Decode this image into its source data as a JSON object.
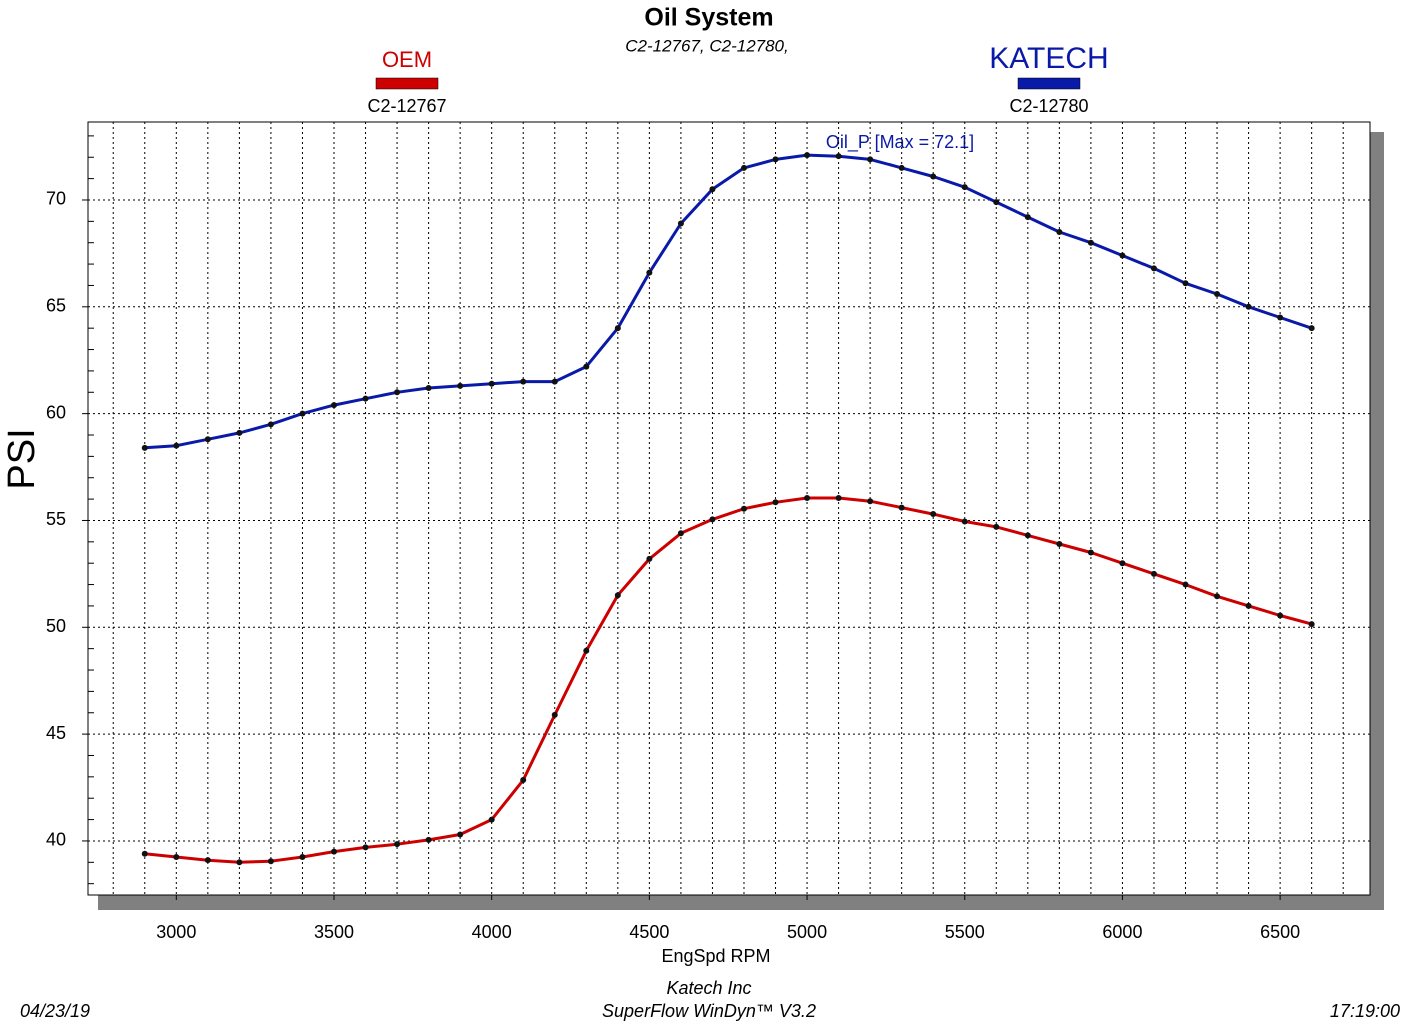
{
  "chart_data": {
    "type": "line",
    "title": "Oil System",
    "subtitle": "C2-12767, C2-12780,",
    "x_label": "EngSpd RPM",
    "y_label": "PSI",
    "annotation": "Oil_P  [Max = 72.1]",
    "footer": {
      "date": "04/23/19",
      "company": "Katech Inc",
      "software": "SuperFlow WinDyn™ V3.2",
      "time": "17:19:00"
    },
    "x": [
      2900,
      3000,
      3100,
      3200,
      3300,
      3400,
      3500,
      3600,
      3700,
      3800,
      3900,
      4000,
      4100,
      4200,
      4300,
      4400,
      4500,
      4600,
      4700,
      4800,
      4900,
      5000,
      5100,
      5200,
      5300,
      5400,
      5500,
      5600,
      5700,
      5800,
      5900,
      6000,
      6100,
      6200,
      6300,
      6400,
      6500,
      6600
    ],
    "series": [
      {
        "name": "OEM",
        "test": "C2-12767",
        "color": "#cc0000",
        "values": [
          39.4,
          39.25,
          39.1,
          39.0,
          39.05,
          39.25,
          39.5,
          39.7,
          39.85,
          40.05,
          40.3,
          41.0,
          42.85,
          45.9,
          48.9,
          51.5,
          53.2,
          54.4,
          55.05,
          55.55,
          55.85,
          56.05,
          56.05,
          55.9,
          55.6,
          55.3,
          54.95,
          54.7,
          54.3,
          53.9,
          53.5,
          53.0,
          52.5,
          52.0,
          51.45,
          51.0,
          50.55,
          50.15
        ]
      },
      {
        "name": "KATECH",
        "test": "C2-12780",
        "color": "#0a1aa8",
        "values": [
          58.4,
          58.5,
          58.8,
          59.1,
          59.5,
          60.0,
          60.4,
          60.7,
          61.0,
          61.2,
          61.3,
          61.4,
          61.5,
          61.5,
          62.2,
          64.0,
          66.6,
          68.9,
          70.5,
          71.5,
          71.9,
          72.1,
          72.05,
          71.9,
          71.5,
          71.1,
          70.6,
          69.9,
          69.2,
          68.5,
          68.0,
          67.4,
          66.8,
          66.1,
          65.6,
          65.0,
          64.5,
          64.0
        ]
      }
    ],
    "xlim": [
      2720,
      6785
    ],
    "ylim": [
      37.47,
      73.65
    ],
    "xticks": [
      3000,
      3500,
      4000,
      4500,
      5000,
      5500,
      6000,
      6500
    ],
    "yticks": [
      40,
      45,
      50,
      55,
      60,
      65,
      70
    ],
    "x_grid": [
      2800,
      2900,
      3000,
      3100,
      3200,
      3300,
      3400,
      3500,
      3600,
      3700,
      3800,
      3900,
      4000,
      4100,
      4200,
      4300,
      4400,
      4500,
      4600,
      4700,
      4800,
      4900,
      5000,
      5100,
      5200,
      5300,
      5400,
      5500,
      5600,
      5700,
      5800,
      5900,
      6000,
      6100,
      6200,
      6300,
      6400,
      6500,
      6600,
      6700
    ],
    "y_minor_ticks": [
      38,
      39,
      41,
      42,
      43,
      44,
      46,
      47,
      48,
      49,
      51,
      52,
      53,
      54,
      56,
      57,
      58,
      59,
      61,
      62,
      63,
      64,
      66,
      67,
      68,
      69,
      71,
      72,
      73
    ],
    "grid": true
  }
}
